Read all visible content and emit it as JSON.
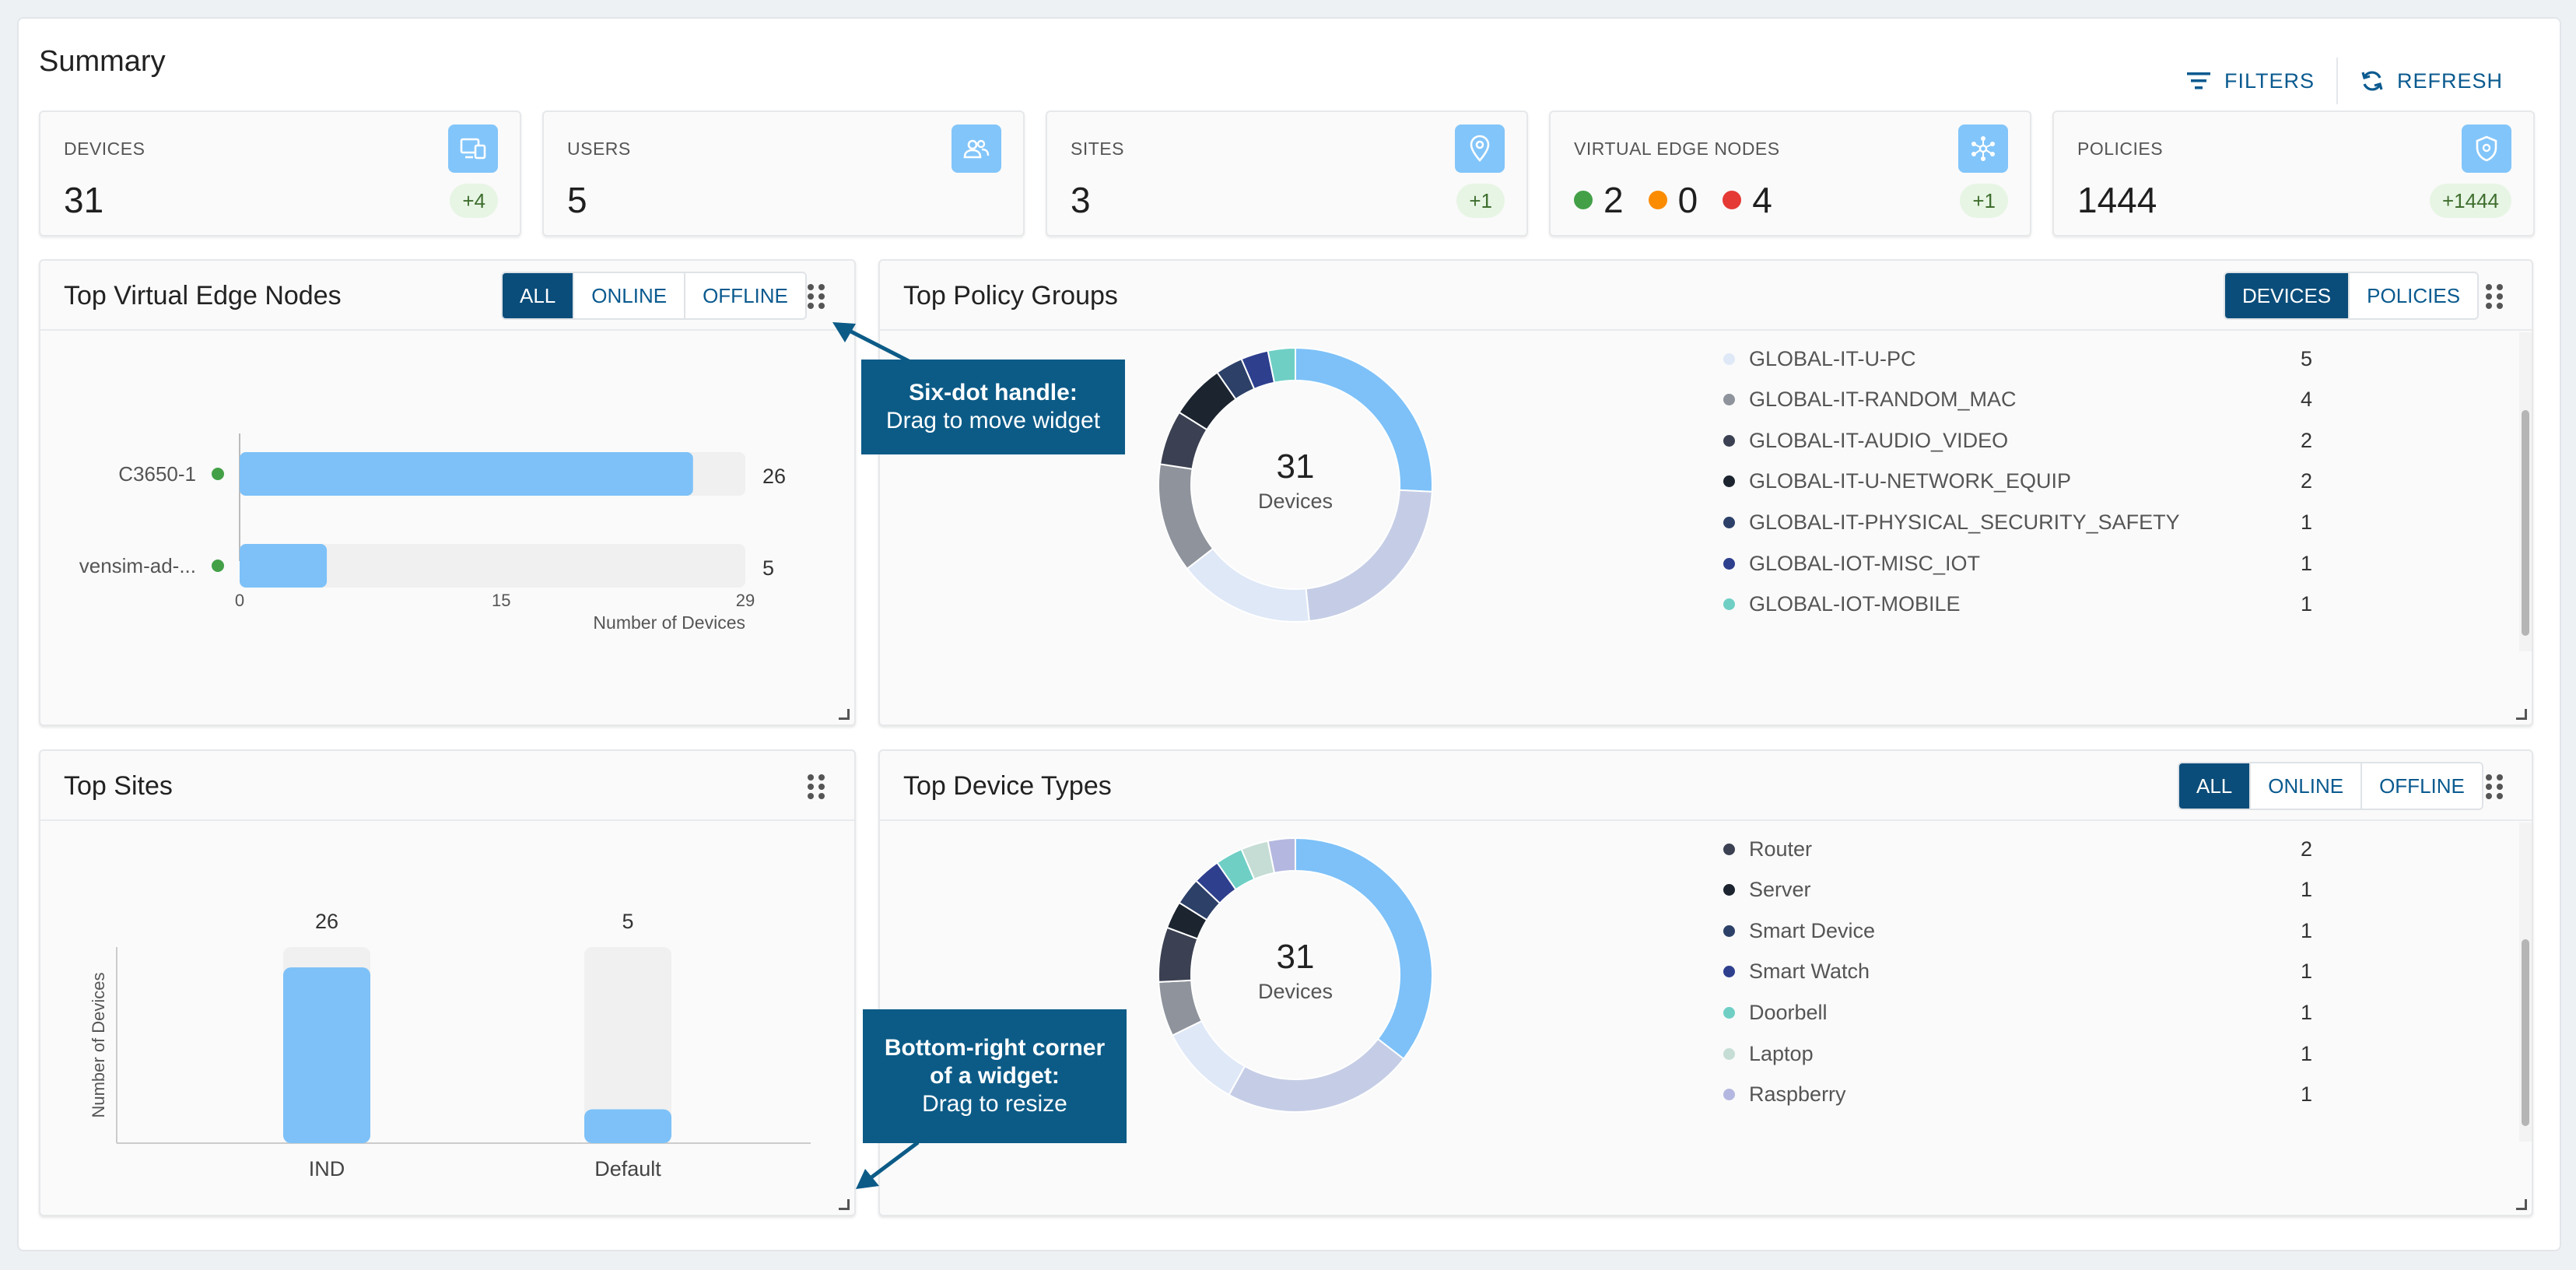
{
  "page": {
    "title": "Summary"
  },
  "header": {
    "filters_label": "FILTERS",
    "refresh_label": "REFRESH"
  },
  "stats": [
    {
      "label": "DEVICES",
      "value": "31",
      "badge": "+4",
      "icon": "devices-icon"
    },
    {
      "label": "USERS",
      "value": "5",
      "badge": "",
      "icon": "users-icon"
    },
    {
      "label": "SITES",
      "value": "3",
      "badge": "+1",
      "icon": "location-pin-icon"
    },
    {
      "label": "VIRTUAL EDGE NODES",
      "badge": "+1",
      "icon": "network-nodes-icon",
      "status": [
        {
          "value": "2",
          "color": "#43a047"
        },
        {
          "value": "0",
          "color": "#fb8c00"
        },
        {
          "value": "4",
          "color": "#e53935"
        }
      ]
    },
    {
      "label": "POLICIES",
      "value": "1444",
      "badge": "+1444",
      "icon": "shield-icon"
    }
  ],
  "widgets": {
    "ven": {
      "title": "Top Virtual Edge Nodes",
      "toggle": [
        "ALL",
        "ONLINE",
        "OFFLINE"
      ],
      "active": "ALL"
    },
    "policy": {
      "title": "Top Policy Groups",
      "toggle": [
        "DEVICES",
        "POLICIES"
      ],
      "active": "DEVICES",
      "donut_value": "31",
      "donut_label": "Devices",
      "legend": [
        {
          "name": "GLOBAL-IT-U-PC",
          "value": "5",
          "color": "#dfe8f7"
        },
        {
          "name": "GLOBAL-IT-RANDOM_MAC",
          "value": "4",
          "color": "#8e939c"
        },
        {
          "name": "GLOBAL-IT-AUDIO_VIDEO",
          "value": "2",
          "color": "#3b4152"
        },
        {
          "name": "GLOBAL-IT-U-NETWORK_EQUIP",
          "value": "2",
          "color": "#1c2430"
        },
        {
          "name": "GLOBAL-IT-PHYSICAL_SECURITY_SAFETY",
          "value": "1",
          "color": "#2c4068"
        },
        {
          "name": "GLOBAL-IOT-MISC_IOT",
          "value": "1",
          "color": "#2e3f8e"
        },
        {
          "name": "GLOBAL-IOT-MOBILE",
          "value": "1",
          "color": "#6fcfc5"
        }
      ]
    },
    "sites": {
      "title": "Top Sites"
    },
    "devtypes": {
      "title": "Top Device Types",
      "toggle": [
        "ALL",
        "ONLINE",
        "OFFLINE"
      ],
      "active": "ALL",
      "donut_value": "31",
      "donut_label": "Devices",
      "legend": [
        {
          "name": "Router",
          "value": "2",
          "color": "#3b4152"
        },
        {
          "name": "Server",
          "value": "1",
          "color": "#1c2430"
        },
        {
          "name": "Smart Device",
          "value": "1",
          "color": "#2c4068"
        },
        {
          "name": "Smart Watch",
          "value": "1",
          "color": "#2e3f8e"
        },
        {
          "name": "Doorbell",
          "value": "1",
          "color": "#6fcfc5"
        },
        {
          "name": "Laptop",
          "value": "1",
          "color": "#c5ddd5"
        },
        {
          "name": "Raspberry",
          "value": "1",
          "color": "#b4b8e0"
        }
      ]
    }
  },
  "callouts": {
    "drag_title": "Six-dot handle:",
    "drag_text": "Drag to move widget",
    "resize_line1": "Bottom-right corner",
    "resize_line2": "of a widget:",
    "resize_text": "Drag to resize"
  },
  "chart_data": [
    {
      "type": "bar",
      "orientation": "horizontal",
      "categories": [
        "C3650-1",
        "vensim-ad-..."
      ],
      "values": [
        26,
        5
      ],
      "max": 29,
      "status_colors": [
        "#43a047",
        "#43a047"
      ],
      "xticks": [
        "0",
        "15",
        "29"
      ],
      "xlabel": "Number of Devices",
      "xlim": [
        0,
        29
      ]
    },
    {
      "type": "pie",
      "center_label": "31",
      "center_sub": "Devices",
      "segments": [
        {
          "value": 8,
          "color": "#7dc1f8"
        },
        {
          "value": 7,
          "color": "#c5cde6"
        },
        {
          "value": 5,
          "color": "#dfe8f7"
        },
        {
          "value": 4,
          "color": "#8e939c"
        },
        {
          "value": 2,
          "color": "#3b4152"
        },
        {
          "value": 2,
          "color": "#1c2430"
        },
        {
          "value": 1,
          "color": "#2c4068"
        },
        {
          "value": 1,
          "color": "#2e3f8e"
        },
        {
          "value": 1,
          "color": "#6fcfc5"
        }
      ]
    },
    {
      "type": "bar",
      "categories": [
        "IND",
        "Default"
      ],
      "values": [
        26,
        5
      ],
      "value_labels": [
        "26",
        "5"
      ],
      "max": 29,
      "ylabel": "Number of Devices"
    },
    {
      "type": "pie",
      "center_label": "31",
      "center_sub": "Devices",
      "segments": [
        {
          "value": 11,
          "color": "#7dc1f8"
        },
        {
          "value": 7,
          "color": "#c5cde6"
        },
        {
          "value": 3,
          "color": "#dfe8f7"
        },
        {
          "value": 2,
          "color": "#8e939c"
        },
        {
          "value": 2,
          "color": "#3b4152"
        },
        {
          "value": 1,
          "color": "#1c2430"
        },
        {
          "value": 1,
          "color": "#2c4068"
        },
        {
          "value": 1,
          "color": "#2e3f8e"
        },
        {
          "value": 1,
          "color": "#6fcfc5"
        },
        {
          "value": 1,
          "color": "#c5ddd5"
        },
        {
          "value": 1,
          "color": "#b4b8e0"
        }
      ]
    }
  ]
}
